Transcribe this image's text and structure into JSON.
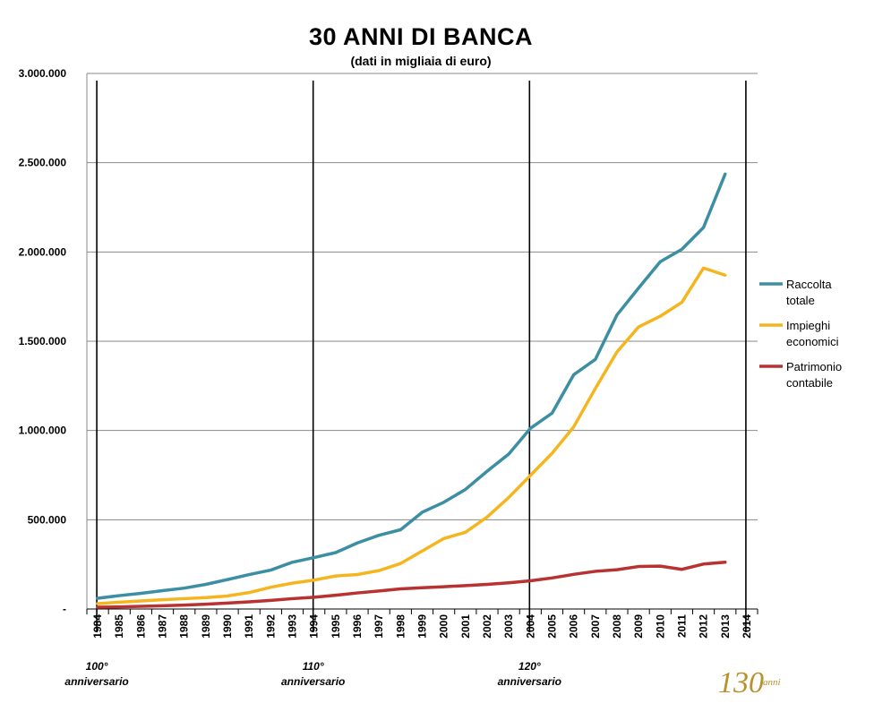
{
  "header": {
    "title": "30 ANNI DI BANCA",
    "subtitle": "(dati in migliaia di euro)"
  },
  "chart_data": {
    "type": "line",
    "title": "30 ANNI DI BANCA",
    "subtitle": "(dati in migliaia di euro)",
    "xlabel": "",
    "ylabel": "",
    "ylim": [
      0,
      3000000
    ],
    "y_ticks": [
      {
        "value": 0,
        "label": "-"
      },
      {
        "value": 500000,
        "label": "500.000"
      },
      {
        "value": 1000000,
        "label": "1.000.000"
      },
      {
        "value": 1500000,
        "label": "1.500.000"
      },
      {
        "value": 2000000,
        "label": "2.000.000"
      },
      {
        "value": 2500000,
        "label": "2.500.000"
      },
      {
        "value": 3000000,
        "label": "3.000.000"
      }
    ],
    "grid": true,
    "legend_position": "right",
    "categories": [
      "1984",
      "1985",
      "1986",
      "1987",
      "1988",
      "1989",
      "1990",
      "1991",
      "1992",
      "1993",
      "1994",
      "1995",
      "1996",
      "1997",
      "1998",
      "1999",
      "2000",
      "2001",
      "2002",
      "2003",
      "2004",
      "2005",
      "2006",
      "2007",
      "2008",
      "2009",
      "2010",
      "2011",
      "2012",
      "2013",
      "2014"
    ],
    "series": [
      {
        "name_lines": [
          "Raccolta",
          "totale"
        ],
        "color": "#3c8fa3",
        "values": [
          60000,
          75000,
          88000,
          103000,
          117000,
          138000,
          165000,
          193000,
          218000,
          262000,
          288000,
          316000,
          370000,
          413000,
          444000,
          542000,
          598000,
          670000,
          772000,
          868000,
          1012000,
          1097000,
          1312000,
          1398000,
          1647000,
          1798000,
          1945000,
          2015000,
          2137000,
          2436000,
          null
        ]
      },
      {
        "name_lines": [
          "Impieghi",
          "economici"
        ],
        "color": "#f5b51f",
        "values": [
          30000,
          38000,
          45000,
          52000,
          58000,
          64000,
          73000,
          92000,
          122000,
          145000,
          162000,
          185000,
          193000,
          215000,
          255000,
          325000,
          395000,
          430000,
          515000,
          625000,
          748000,
          872000,
          1020000,
          1235000,
          1440000,
          1580000,
          1640000,
          1718000,
          1910000,
          1870000,
          null
        ]
      },
      {
        "name_lines": [
          "Patrimonio",
          "contabile"
        ],
        "color": "#b83232",
        "values": [
          10000,
          12000,
          15000,
          18000,
          22000,
          27000,
          33000,
          40000,
          48000,
          58000,
          66000,
          77000,
          90000,
          101000,
          113000,
          119000,
          125000,
          131000,
          138000,
          147000,
          158000,
          174000,
          194000,
          211000,
          220000,
          238000,
          240000,
          222000,
          252000,
          262000,
          null
        ]
      }
    ],
    "annotations": [
      {
        "year": "1984",
        "lines": [
          "100°",
          "anniversario"
        ]
      },
      {
        "year": "1994",
        "lines": [
          "110°",
          "anniversario"
        ]
      },
      {
        "year": "2004",
        "lines": [
          "120°",
          "anniversario"
        ]
      },
      {
        "year": "2014",
        "lines": []
      }
    ]
  },
  "logo": {
    "number": "130",
    "word": "anni",
    "color": "#b8922e"
  }
}
